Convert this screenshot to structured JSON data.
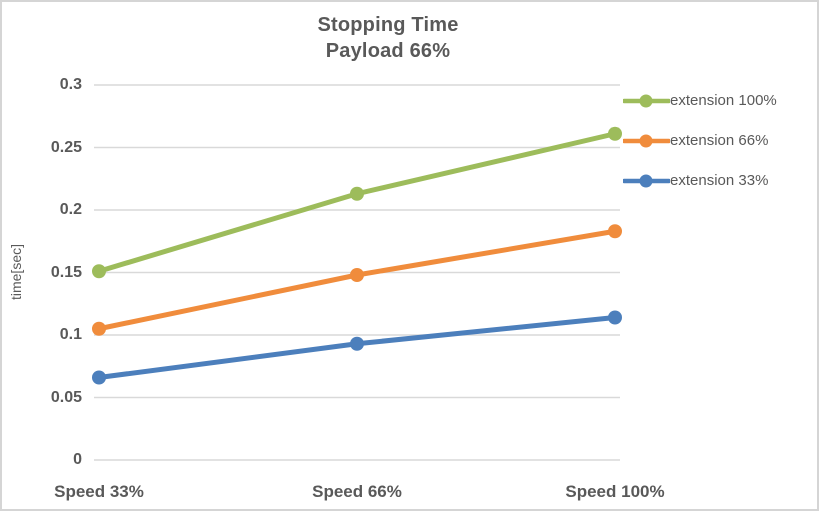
{
  "chart_data": {
    "type": "line",
    "title": "Stopping Time",
    "subtitle": "Payload 66%",
    "ylabel": "time[sec]",
    "xlabel": "",
    "categories": [
      "Speed 33%",
      "Speed 66%",
      "Speed 100%"
    ],
    "series": [
      {
        "name": "extension 100%",
        "color": "#9DBC5B",
        "values": [
          0.151,
          0.213,
          0.261
        ]
      },
      {
        "name": "extension 66%",
        "color": "#F08C3C",
        "values": [
          0.105,
          0.148,
          0.183
        ]
      },
      {
        "name": "extension 33%",
        "color": "#4C7FBC",
        "values": [
          0.066,
          0.093,
          0.114
        ]
      }
    ],
    "ylim": [
      0,
      0.3
    ],
    "yticks": [
      0,
      0.05,
      0.1,
      0.15,
      0.2,
      0.25,
      0.3
    ],
    "ytick_labels": [
      "0",
      "0.05",
      "0.1",
      "0.15",
      "0.2",
      "0.25",
      "0.3"
    ],
    "grid": "horizontal",
    "legend_position": "right",
    "marker": "circle",
    "colors": {
      "grid": "#D9D9D9",
      "text": "#595959",
      "background": "#FFFFFF",
      "frame_border": "#D5D5D5"
    }
  }
}
